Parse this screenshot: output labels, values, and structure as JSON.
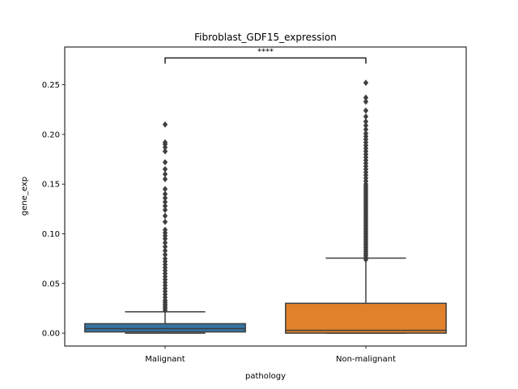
{
  "chart_data": {
    "type": "box",
    "title": "Fibroblast_GDF15_expression",
    "xlabel": "pathology",
    "ylabel": "gene_exp",
    "ylim": [
      -0.013,
      0.288
    ],
    "yticks": [
      0.0,
      0.05,
      0.1,
      0.15,
      0.2,
      0.25
    ],
    "ytick_labels": [
      "0.00",
      "0.05",
      "0.10",
      "0.15",
      "0.20",
      "0.25"
    ],
    "grid": false,
    "categories": [
      "Malignant",
      "Non-malignant"
    ],
    "boxes": [
      {
        "category": "Malignant",
        "color": "#3274a1",
        "whisker_low": 0.0,
        "q1": 0.0012,
        "median": 0.0045,
        "q3": 0.0095,
        "whisker_high": 0.0215,
        "outliers": [
          0.023,
          0.025,
          0.027,
          0.029,
          0.031,
          0.033,
          0.036,
          0.039,
          0.042,
          0.045,
          0.048,
          0.051,
          0.054,
          0.057,
          0.06,
          0.063,
          0.066,
          0.069,
          0.072,
          0.075,
          0.079,
          0.083,
          0.087,
          0.091,
          0.095,
          0.098,
          0.101,
          0.104,
          0.112,
          0.118,
          0.124,
          0.128,
          0.132,
          0.136,
          0.14,
          0.145,
          0.155,
          0.16,
          0.165,
          0.172,
          0.183,
          0.187,
          0.19,
          0.192,
          0.21
        ]
      },
      {
        "category": "Non-malignant",
        "color": "#e1812c",
        "whisker_low": 0.0,
        "q1": 0.0,
        "median": 0.0028,
        "q3": 0.03,
        "whisker_high": 0.0755,
        "outliers": [
          0.074,
          0.076,
          0.078,
          0.08,
          0.082,
          0.084,
          0.086,
          0.088,
          0.09,
          0.092,
          0.094,
          0.096,
          0.098,
          0.1,
          0.102,
          0.104,
          0.106,
          0.108,
          0.11,
          0.112,
          0.114,
          0.116,
          0.118,
          0.12,
          0.122,
          0.124,
          0.126,
          0.128,
          0.13,
          0.132,
          0.134,
          0.136,
          0.138,
          0.14,
          0.142,
          0.144,
          0.146,
          0.148,
          0.15,
          0.153,
          0.156,
          0.159,
          0.162,
          0.165,
          0.168,
          0.171,
          0.174,
          0.177,
          0.18,
          0.183,
          0.186,
          0.189,
          0.192,
          0.195,
          0.198,
          0.201,
          0.205,
          0.209,
          0.213,
          0.218,
          0.224,
          0.233,
          0.237,
          0.252
        ]
      }
    ],
    "annotation": {
      "text": "****",
      "between": [
        "Malignant",
        "Non-malignant"
      ],
      "y": 0.277
    }
  }
}
